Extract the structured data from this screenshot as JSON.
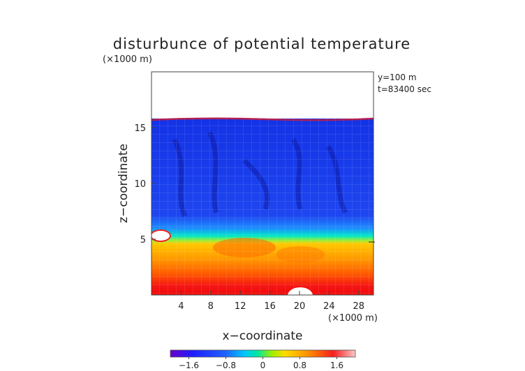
{
  "chart_data": {
    "type": "heatmap",
    "title": "disturbunce of potential temperature",
    "scale_top_left": "(×1000 m)",
    "scale_bottom_right": "(×1000 m)",
    "xlabel": "x−coordinate",
    "ylabel": "z−coordinate",
    "annotations": [
      "y=100 m",
      "t=83400 sec"
    ],
    "xlim": [
      0,
      30
    ],
    "ylim": [
      0,
      20
    ],
    "x_ticks": [
      4,
      8,
      12,
      16,
      20,
      24,
      28
    ],
    "y_ticks": [
      5,
      10,
      15
    ],
    "colorbar": {
      "min": -2.0,
      "max": 2.0,
      "ticks": [
        -1.6,
        -0.8,
        0,
        0.8,
        1.6
      ],
      "tick_labels": [
        "−1.6",
        "−0.8",
        "0",
        "0.8",
        "1.6"
      ]
    },
    "field_regions": [
      {
        "z_range": [
          16,
          20
        ],
        "value": "undefined (no data)"
      },
      {
        "z_range": [
          6.5,
          16
        ],
        "value": -1.0
      },
      {
        "z_range": [
          5.5,
          6.5
        ],
        "value": 0.0
      },
      {
        "z_range": [
          3,
          5.5
        ],
        "value": 0.9
      },
      {
        "z_range": [
          0,
          3
        ],
        "value": 1.6
      }
    ]
  }
}
